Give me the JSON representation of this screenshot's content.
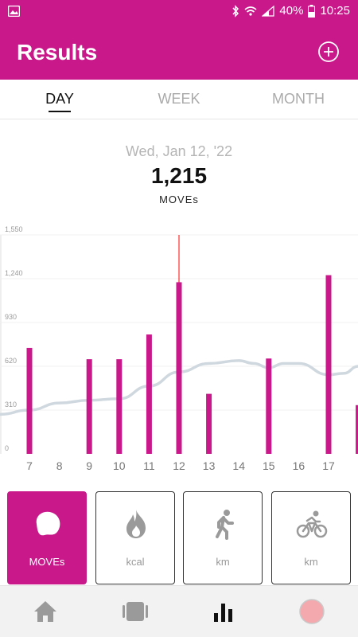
{
  "status_bar": {
    "battery": "40%",
    "time": "10:25"
  },
  "header": {
    "title": "Results"
  },
  "tabs": [
    {
      "label": "DAY",
      "active": true
    },
    {
      "label": "WEEK",
      "active": false
    },
    {
      "label": "MONTH",
      "active": false
    }
  ],
  "summary": {
    "date": "Wed, Jan 12, '22",
    "value": "1,215",
    "unit": "MOVEs"
  },
  "chart_data": {
    "type": "bar",
    "ylim": [
      0,
      1550
    ],
    "y_ticks": [
      "1,550",
      "1,240",
      "930",
      "620",
      "310",
      "0"
    ],
    "x_ticks": [
      "7",
      "8",
      "9",
      "10",
      "11",
      "12",
      "13",
      "14",
      "15",
      "16",
      "17"
    ],
    "bars": [
      {
        "x": 7,
        "value": 750
      },
      {
        "x": 9,
        "value": 670
      },
      {
        "x": 10,
        "value": 670
      },
      {
        "x": 11,
        "value": 845
      },
      {
        "x": 12,
        "value": 1215
      },
      {
        "x": 13,
        "value": 425
      },
      {
        "x": 15,
        "value": 675
      },
      {
        "x": 17,
        "value": 1265
      },
      {
        "x": 18,
        "value": 345
      }
    ],
    "selected_x": 12,
    "trend_line": [
      [
        6,
        280
      ],
      [
        7,
        310
      ],
      [
        8,
        360
      ],
      [
        9,
        380
      ],
      [
        10,
        390
      ],
      [
        11,
        480
      ],
      [
        12,
        580
      ],
      [
        13,
        640
      ],
      [
        14,
        660
      ],
      [
        14.5,
        640
      ],
      [
        15,
        610
      ],
      [
        15.5,
        640
      ],
      [
        16,
        640
      ],
      [
        17,
        560
      ],
      [
        17.5,
        570
      ],
      [
        18,
        620
      ]
    ],
    "colors": {
      "bar": "#c8188a",
      "selected_marker": "#ff0000",
      "trend": "#d0d8df"
    }
  },
  "metrics": [
    {
      "label": "MOVEs",
      "icon": "moves-blob-icon",
      "active": true
    },
    {
      "label": "kcal",
      "icon": "flame-icon",
      "active": false
    },
    {
      "label": "km",
      "icon": "walking-person-icon",
      "active": false
    },
    {
      "label": "km",
      "icon": "cyclist-icon",
      "active": false
    }
  ],
  "bottom_nav": [
    {
      "icon": "home-icon"
    },
    {
      "icon": "device-icon"
    },
    {
      "icon": "bar-chart-icon"
    },
    {
      "icon": "record-icon"
    }
  ],
  "colors": {
    "brand": "#c8188a"
  }
}
